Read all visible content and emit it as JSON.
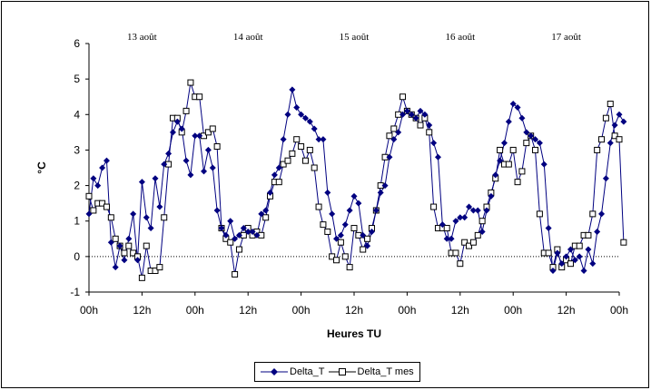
{
  "chart_data": {
    "type": "line",
    "title": "",
    "xlabel": "Heures TU",
    "ylabel": "°C",
    "ylim": [
      -1,
      6
    ],
    "y_ticks": [
      "-1",
      "0",
      "1",
      "2",
      "3",
      "4",
      "5",
      "6"
    ],
    "x_range_hours": [
      0,
      120
    ],
    "x_tick_labels": [
      "00h",
      "12h",
      "00h",
      "12h",
      "00h",
      "12h",
      "00h",
      "12h",
      "00h",
      "12h",
      "00h"
    ],
    "date_labels": [
      "13 août",
      "14 août",
      "15 août",
      "16 août",
      "17 août"
    ],
    "reference_line": 0,
    "grid": false,
    "legend_position": "bottom",
    "series": [
      {
        "name": "Delta_T",
        "color": "#000080",
        "marker": "filled-diamond",
        "values": [
          [
            0,
            1.2
          ],
          [
            1,
            2.2
          ],
          [
            2,
            2.0
          ],
          [
            3,
            2.5
          ],
          [
            4,
            2.7
          ],
          [
            5,
            0.4
          ],
          [
            6,
            -0.3
          ],
          [
            7,
            0.3
          ],
          [
            8,
            -0.1
          ],
          [
            9,
            0.5
          ],
          [
            10,
            1.2
          ],
          [
            11,
            -0.1
          ],
          [
            12,
            2.1
          ],
          [
            13,
            1.1
          ],
          [
            14,
            0.8
          ],
          [
            15,
            2.2
          ],
          [
            16,
            1.4
          ],
          [
            17,
            2.6
          ],
          [
            18,
            2.9
          ],
          [
            19,
            3.5
          ],
          [
            20,
            3.8
          ],
          [
            21,
            3.6
          ],
          [
            22,
            2.7
          ],
          [
            23,
            2.3
          ],
          [
            24,
            3.4
          ],
          [
            25,
            3.4
          ],
          [
            26,
            2.4
          ],
          [
            27,
            3.0
          ],
          [
            28,
            2.5
          ],
          [
            29,
            1.3
          ],
          [
            30,
            0.8
          ],
          [
            31,
            0.6
          ],
          [
            32,
            1.0
          ],
          [
            33,
            0.5
          ],
          [
            34,
            0.6
          ],
          [
            35,
            0.8
          ],
          [
            36,
            0.7
          ],
          [
            37,
            0.7
          ],
          [
            38,
            0.6
          ],
          [
            39,
            1.2
          ],
          [
            40,
            1.3
          ],
          [
            41,
            1.8
          ],
          [
            42,
            2.3
          ],
          [
            43,
            2.5
          ],
          [
            44,
            3.3
          ],
          [
            45,
            4.0
          ],
          [
            46,
            4.7
          ],
          [
            47,
            4.2
          ],
          [
            48,
            4.0
          ],
          [
            49,
            3.9
          ],
          [
            50,
            3.8
          ],
          [
            51,
            3.6
          ],
          [
            52,
            3.3
          ],
          [
            53,
            3.3
          ],
          [
            54,
            1.8
          ],
          [
            55,
            1.2
          ],
          [
            56,
            0.5
          ],
          [
            57,
            0.6
          ],
          [
            58,
            0.9
          ],
          [
            59,
            1.3
          ],
          [
            60,
            1.7
          ],
          [
            61,
            1.5
          ],
          [
            62,
            0.6
          ],
          [
            63,
            0.3
          ],
          [
            64,
            0.7
          ],
          [
            65,
            1.3
          ],
          [
            66,
            1.8
          ],
          [
            67,
            2.0
          ],
          [
            68,
            2.8
          ],
          [
            69,
            3.3
          ],
          [
            70,
            3.5
          ],
          [
            71,
            4.0
          ],
          [
            72,
            4.1
          ],
          [
            73,
            4.0
          ],
          [
            74,
            3.9
          ],
          [
            75,
            4.1
          ],
          [
            76,
            4.0
          ],
          [
            77,
            3.7
          ],
          [
            78,
            3.2
          ],
          [
            79,
            2.8
          ],
          [
            80,
            0.9
          ],
          [
            81,
            0.5
          ],
          [
            82,
            0.5
          ],
          [
            83,
            1.0
          ],
          [
            84,
            1.1
          ],
          [
            85,
            1.1
          ],
          [
            86,
            1.4
          ],
          [
            87,
            1.3
          ],
          [
            88,
            1.3
          ],
          [
            89,
            0.7
          ],
          [
            90,
            1.3
          ],
          [
            91,
            1.7
          ],
          [
            92,
            2.3
          ],
          [
            93,
            2.7
          ],
          [
            94,
            3.2
          ],
          [
            95,
            3.8
          ],
          [
            96,
            4.3
          ],
          [
            97,
            4.2
          ],
          [
            98,
            3.9
          ],
          [
            99,
            3.5
          ],
          [
            100,
            3.4
          ],
          [
            101,
            3.3
          ],
          [
            102,
            3.2
          ],
          [
            103,
            2.6
          ],
          [
            104,
            0.8
          ],
          [
            105,
            -0.4
          ],
          [
            106,
            0.1
          ],
          [
            107,
            -0.2
          ],
          [
            108,
            0.0
          ],
          [
            109,
            0.2
          ],
          [
            110,
            -0.1
          ],
          [
            111,
            0.0
          ],
          [
            112,
            -0.4
          ],
          [
            113,
            0.2
          ],
          [
            114,
            -0.2
          ],
          [
            115,
            0.7
          ],
          [
            116,
            1.2
          ],
          [
            117,
            2.2
          ],
          [
            118,
            3.2
          ],
          [
            119,
            3.7
          ],
          [
            120,
            4.0
          ],
          [
            121,
            3.8
          ]
        ]
      },
      {
        "name": "Delta_T mes",
        "color": "#000080",
        "marker": "open-square",
        "values": [
          [
            0,
            1.7
          ],
          [
            1,
            1.3
          ],
          [
            2,
            1.5
          ],
          [
            3,
            1.5
          ],
          [
            4,
            1.4
          ],
          [
            5,
            1.1
          ],
          [
            6,
            0.5
          ],
          [
            7,
            0.3
          ],
          [
            8,
            0.1
          ],
          [
            9,
            0.3
          ],
          [
            10,
            0.1
          ],
          [
            11,
            0.0
          ],
          [
            12,
            -0.6
          ],
          [
            13,
            0.3
          ],
          [
            14,
            -0.4
          ],
          [
            15,
            -0.4
          ],
          [
            16,
            -0.3
          ],
          [
            17,
            1.1
          ],
          [
            18,
            2.6
          ],
          [
            19,
            3.9
          ],
          [
            20,
            3.9
          ],
          [
            21,
            3.5
          ],
          [
            22,
            4.1
          ],
          [
            23,
            4.9
          ],
          [
            24,
            4.5
          ],
          [
            25,
            4.5
          ],
          [
            26,
            3.4
          ],
          [
            27,
            3.5
          ],
          [
            28,
            3.6
          ],
          [
            29,
            3.1
          ],
          [
            30,
            0.8
          ],
          [
            31,
            0.5
          ],
          [
            32,
            0.4
          ],
          [
            33,
            -0.5
          ],
          [
            34,
            0.2
          ],
          [
            35,
            0.6
          ],
          [
            36,
            0.8
          ],
          [
            37,
            0.6
          ],
          [
            38,
            0.7
          ],
          [
            39,
            0.6
          ],
          [
            40,
            1.1
          ],
          [
            41,
            1.7
          ],
          [
            42,
            2.1
          ],
          [
            43,
            2.1
          ],
          [
            44,
            2.6
          ],
          [
            45,
            2.7
          ],
          [
            46,
            2.9
          ],
          [
            47,
            3.3
          ],
          [
            48,
            3.1
          ],
          [
            49,
            2.7
          ],
          [
            50,
            3.0
          ],
          [
            51,
            2.5
          ],
          [
            52,
            1.4
          ],
          [
            53,
            0.9
          ],
          [
            54,
            0.7
          ],
          [
            55,
            0.0
          ],
          [
            56,
            -0.1
          ],
          [
            57,
            0.4
          ],
          [
            58,
            0.0
          ],
          [
            59,
            -0.3
          ],
          [
            60,
            0.8
          ],
          [
            61,
            0.6
          ],
          [
            62,
            0.2
          ],
          [
            63,
            0.5
          ],
          [
            64,
            0.8
          ],
          [
            65,
            1.3
          ],
          [
            66,
            2.0
          ],
          [
            67,
            2.8
          ],
          [
            68,
            3.4
          ],
          [
            69,
            3.6
          ],
          [
            70,
            4.0
          ],
          [
            71,
            4.5
          ],
          [
            72,
            4.1
          ],
          [
            73,
            4.0
          ],
          [
            74,
            3.9
          ],
          [
            75,
            3.7
          ],
          [
            76,
            3.9
          ],
          [
            77,
            3.5
          ],
          [
            78,
            1.4
          ],
          [
            79,
            0.8
          ],
          [
            80,
            0.8
          ],
          [
            81,
            0.8
          ],
          [
            82,
            0.1
          ],
          [
            83,
            0.1
          ],
          [
            84,
            -0.2
          ],
          [
            85,
            0.4
          ],
          [
            86,
            0.3
          ],
          [
            87,
            0.4
          ],
          [
            88,
            0.6
          ],
          [
            89,
            1.0
          ],
          [
            90,
            1.4
          ],
          [
            91,
            1.8
          ],
          [
            92,
            2.2
          ],
          [
            93,
            3.0
          ],
          [
            94,
            2.6
          ],
          [
            95,
            2.6
          ],
          [
            96,
            3.0
          ],
          [
            97,
            2.1
          ],
          [
            98,
            2.4
          ],
          [
            99,
            3.2
          ],
          [
            100,
            3.4
          ],
          [
            101,
            3.0
          ],
          [
            102,
            1.2
          ],
          [
            103,
            0.1
          ],
          [
            104,
            0.1
          ],
          [
            105,
            -0.3
          ],
          [
            106,
            0.2
          ],
          [
            107,
            -0.3
          ],
          [
            108,
            -0.1
          ],
          [
            109,
            -0.2
          ],
          [
            110,
            0.3
          ],
          [
            111,
            0.3
          ],
          [
            112,
            0.6
          ],
          [
            113,
            0.6
          ],
          [
            114,
            1.2
          ],
          [
            115,
            3.0
          ],
          [
            116,
            3.3
          ],
          [
            117,
            3.9
          ],
          [
            118,
            4.3
          ],
          [
            119,
            3.4
          ],
          [
            120,
            3.3
          ],
          [
            121,
            0.4
          ]
        ]
      }
    ]
  }
}
